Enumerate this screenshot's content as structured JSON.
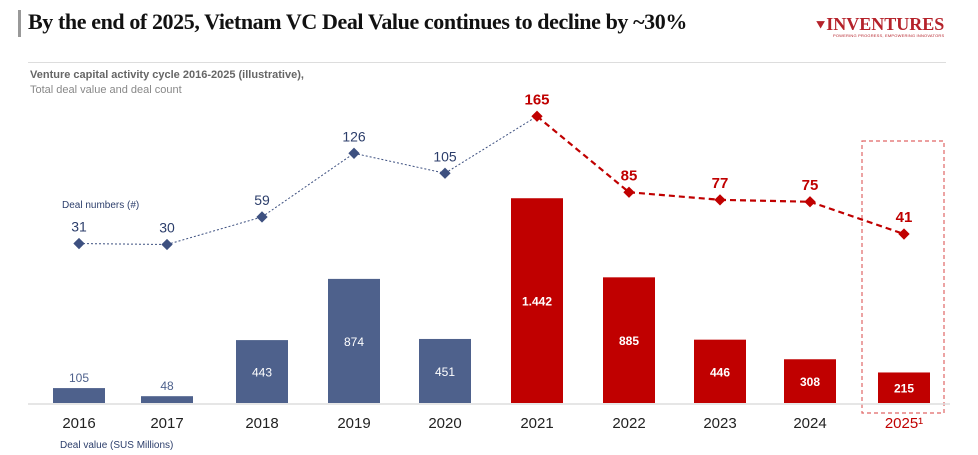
{
  "header": {
    "title": "By the end of 2025, Vietnam VC Deal Value continues to decline by ~30%",
    "logo_text": "INVENTURES",
    "logo_tagline": "POWERING PROGRESS, EMPOWERING INNOVATORS"
  },
  "chart_data": {
    "type": "bar",
    "title": "Venture capital activity cycle 2016-2025 (illustrative),",
    "subtitle": "Total deal value and deal count",
    "categories": [
      "2016",
      "2017",
      "2018",
      "2019",
      "2020",
      "2021",
      "2022",
      "2023",
      "2024",
      "2025¹"
    ],
    "series": [
      {
        "name": "Deal value (SUS Millions)",
        "type": "bar",
        "values": [
          105,
          48,
          443,
          874,
          451,
          1442,
          885,
          446,
          308,
          215
        ],
        "labels": [
          "105",
          "48",
          "443",
          "874",
          "451",
          "1.442",
          "885",
          "446",
          "308",
          "215"
        ]
      },
      {
        "name": "Deal numbers (#)",
        "type": "line",
        "values": [
          31,
          30,
          59,
          126,
          105,
          165,
          85,
          77,
          75,
          41
        ]
      }
    ],
    "colors": {
      "past": "#4e618c",
      "decline": "#c00000",
      "line_past": "#3d5080",
      "line_decline": "#c00000",
      "highlight_box": "#e06666"
    },
    "highlight": "2025¹",
    "legend_placement": "inline",
    "grid": false
  }
}
